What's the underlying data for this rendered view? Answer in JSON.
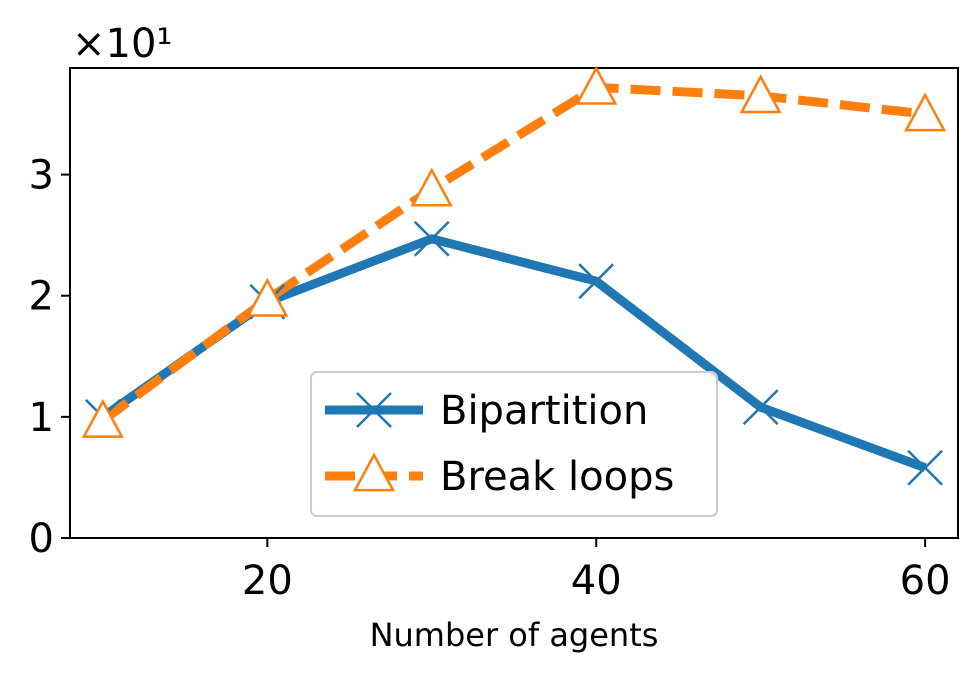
{
  "chart_data": {
    "type": "line",
    "x": [
      10,
      20,
      30,
      40,
      50,
      60
    ],
    "series": [
      {
        "name": "Bipartition",
        "values": [
          1.0,
          1.95,
          2.47,
          2.12,
          1.08,
          0.58
        ],
        "color": "#1f77b4",
        "linestyle": "solid",
        "marker": "x"
      },
      {
        "name": "Break loops",
        "values": [
          0.97,
          1.97,
          2.88,
          3.72,
          3.65,
          3.5
        ],
        "color": "#ff7f0e",
        "linestyle": "dashed",
        "marker": "triangle-up-open"
      }
    ],
    "title": "",
    "xlabel": "Number of agents",
    "ylabel": "",
    "y_scale_factor": "×10¹",
    "xlim": [
      8,
      62
    ],
    "ylim": [
      0,
      3.88
    ],
    "xticks": [
      20,
      40,
      60
    ],
    "yticks": [
      0,
      1,
      2,
      3
    ],
    "grid": false,
    "legend_position": "lower-center"
  }
}
